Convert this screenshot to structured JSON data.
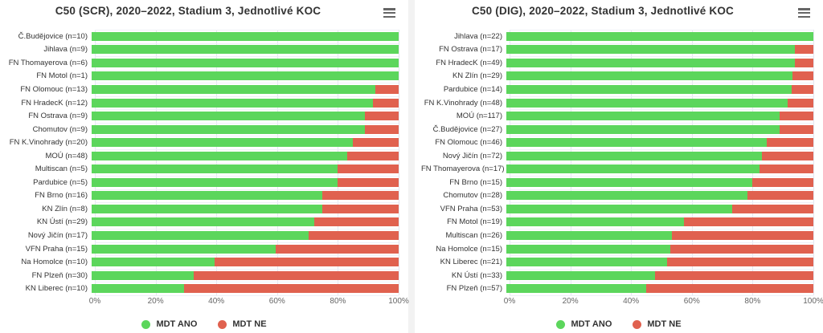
{
  "colors": {
    "mdt_ano_green": "#5cd65c",
    "mdt_ne_red": "#e0614f",
    "grid_line": "#e4e6f1",
    "title_text": "#333333",
    "axis_text": "#666666"
  },
  "chart_data": [
    {
      "type": "bar",
      "orientation": "horizontal",
      "stacked": true,
      "stack_total": 100,
      "title": "C50 (SCR), 2020–2022, Stadium 3, Jednotlivé KOC",
      "menu_icon": "hamburger-menu-icon",
      "xlim": [
        0,
        100
      ],
      "x_ticks": [
        "0%",
        "20%",
        "40%",
        "60%",
        "80%",
        "100%"
      ],
      "grid": true,
      "legend_position": "bottom-center",
      "categories": [
        "Č.Budějovice (n=10)",
        "Jihlava (n=9)",
        "FN Thomayerova (n=6)",
        "FN Motol (n=1)",
        "FN Olomouc (n=13)",
        "FN HradecK (n=12)",
        "FN Ostrava (n=9)",
        "Chomutov (n=9)",
        "FN K.Vinohrady (n=20)",
        "MOÚ (n=48)",
        "Multiscan (n=5)",
        "Pardubice (n=5)",
        "FN Brno (n=16)",
        "KN Zlín (n=8)",
        "KN Ústí (n=29)",
        "Nový Jičín (n=17)",
        "VFN Praha (n=15)",
        "Na Homolce (n=10)",
        "FN Plzeň (n=30)",
        "KN Liberec (n=10)"
      ],
      "series": [
        {
          "name": "MDT ANO",
          "color": "#5cd65c",
          "values": [
            100,
            100,
            100,
            100,
            92.3,
            91.7,
            88.9,
            88.9,
            85,
            83.3,
            80,
            80,
            75,
            75,
            72.4,
            70.6,
            60,
            40,
            33.3,
            30
          ]
        },
        {
          "name": "MDT NE",
          "color": "#e0614f",
          "values": [
            0,
            0,
            0,
            0,
            7.7,
            8.3,
            11.1,
            11.1,
            15,
            16.7,
            20,
            20,
            25,
            25,
            27.6,
            29.4,
            40,
            60,
            66.7,
            70
          ]
        }
      ]
    },
    {
      "type": "bar",
      "orientation": "horizontal",
      "stacked": true,
      "stack_total": 100,
      "title": "C50 (DIG), 2020–2022, Stadium 3, Jednotlivé KOC",
      "menu_icon": "hamburger-menu-icon",
      "xlim": [
        0,
        100
      ],
      "x_ticks": [
        "0%",
        "20%",
        "40%",
        "60%",
        "80%",
        "100%"
      ],
      "grid": true,
      "legend_position": "bottom-center",
      "categories": [
        "Jihlava (n=22)",
        "FN Ostrava (n=17)",
        "FN HradecK (n=49)",
        "KN Zlín (n=29)",
        "Pardubice (n=14)",
        "FN K.Vinohrady (n=48)",
        "MOÚ (n=117)",
        "Č.Budějovice (n=27)",
        "FN Olomouc (n=46)",
        "Nový Jičín (n=72)",
        "FN Thomayerova (n=17)",
        "FN Brno (n=15)",
        "Chomutov (n=28)",
        "VFN Praha (n=53)",
        "FN Motol (n=19)",
        "Multiscan (n=26)",
        "Na Homolce (n=15)",
        "KN Liberec (n=21)",
        "KN Ústí (n=33)",
        "FN Plzeň (n=57)"
      ],
      "series": [
        {
          "name": "MDT ANO",
          "color": "#5cd65c",
          "values": [
            100,
            94.1,
            93.9,
            93.1,
            92.9,
            91.7,
            88.9,
            88.9,
            84.8,
            83.3,
            82.4,
            80,
            78.6,
            73.6,
            57.9,
            53.8,
            53.3,
            52.4,
            48.5,
            45.6
          ]
        },
        {
          "name": "MDT NE",
          "color": "#e0614f",
          "values": [
            0,
            5.9,
            6.1,
            6.9,
            7.1,
            8.3,
            11.1,
            11.1,
            15.2,
            16.7,
            17.6,
            20,
            21.4,
            26.4,
            42.1,
            46.2,
            46.7,
            47.6,
            51.5,
            54.4
          ]
        }
      ]
    }
  ]
}
